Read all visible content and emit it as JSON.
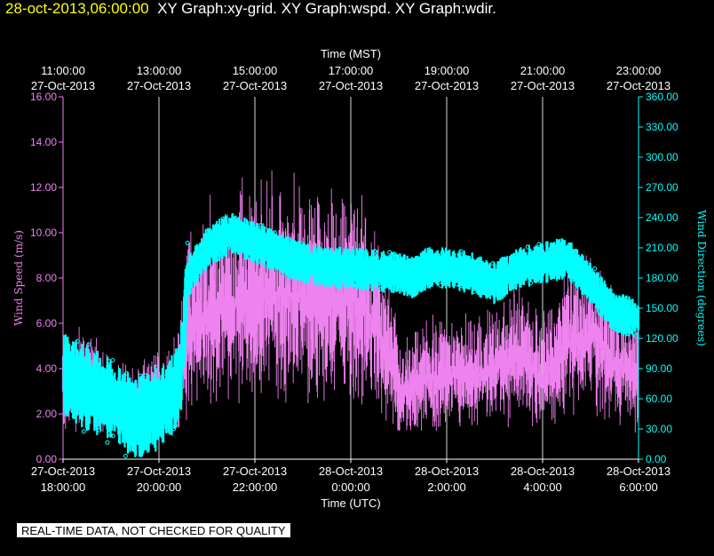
{
  "header": {
    "timestamp": "28-oct-2013,06:00:00",
    "graphs": "XY Graph:xy-grid.  XY Graph:wspd.  XY Graph:wdir."
  },
  "banner": "REAL-TIME DATA, NOT CHECKED FOR QUALITY",
  "colors": {
    "background": "#000000",
    "speed": "#ee82ee",
    "direction": "#00ffff",
    "text": "#ffffff",
    "grid": "#ffffff",
    "header_timestamp": "#ffff00"
  },
  "chart_data": {
    "type": "scatter",
    "top_axis": {
      "title": "Time (MST)",
      "ticks": [
        {
          "hours": 0,
          "time": "11:00:00",
          "date": "27-Oct-2013"
        },
        {
          "hours": 2,
          "time": "13:00:00",
          "date": "27-Oct-2013"
        },
        {
          "hours": 4,
          "time": "15:00:00",
          "date": "27-Oct-2013"
        },
        {
          "hours": 6,
          "time": "17:00:00",
          "date": "27-Oct-2013"
        },
        {
          "hours": 8,
          "time": "19:00:00",
          "date": "27-Oct-2013"
        },
        {
          "hours": 10,
          "time": "21:00:00",
          "date": "27-Oct-2013"
        },
        {
          "hours": 12,
          "time": "23:00:00",
          "date": "27-Oct-2013"
        }
      ]
    },
    "bottom_axis": {
      "title": "Time (UTC)",
      "ticks": [
        {
          "hours": 0,
          "date": "27-Oct-2013",
          "time": "18:00:00"
        },
        {
          "hours": 2,
          "date": "27-Oct-2013",
          "time": "20:00:00"
        },
        {
          "hours": 4,
          "date": "27-Oct-2013",
          "time": "22:00:00"
        },
        {
          "hours": 6,
          "date": "28-Oct-2013",
          "time": "0:00:00"
        },
        {
          "hours": 8,
          "date": "28-Oct-2013",
          "time": "2:00:00"
        },
        {
          "hours": 10,
          "date": "28-Oct-2013",
          "time": "4:00:00"
        },
        {
          "hours": 12,
          "date": "28-Oct-2013",
          "time": "6:00:00"
        }
      ]
    },
    "x_range_hours": [
      0,
      12
    ],
    "left_axis": {
      "label": "Wind Speed (m/s)",
      "ylim": [
        0,
        16
      ],
      "ticks": [
        "0.00",
        "2.00",
        "4.00",
        "6.00",
        "8.00",
        "10.00",
        "12.00",
        "14.00",
        "16.00"
      ]
    },
    "right_axis": {
      "label": "Wind Direction (degrees)",
      "ylim": [
        0,
        360
      ],
      "ticks": [
        "0.00",
        "30.00",
        "60.00",
        "90.00",
        "120.00",
        "150.00",
        "180.00",
        "210.00",
        "240.00",
        "270.00",
        "300.00",
        "330.00",
        "360.00"
      ]
    },
    "grid": "vertical lines at tick times",
    "series": [
      {
        "axis": "left",
        "values_hours": [
          0,
          0.5,
          1.0,
          1.5,
          2.0,
          2.4,
          2.6,
          3.0,
          3.5,
          4.0,
          4.5,
          5.0,
          5.5,
          6.0,
          6.3,
          6.6,
          6.8,
          7.0,
          7.5,
          8.0,
          8.5,
          9.0,
          9.5,
          10.0,
          10.5,
          11.0,
          11.5,
          12.0
        ],
        "values": [
          3.0,
          3.5,
          2.5,
          2.3,
          2.8,
          3.2,
          5.8,
          6.5,
          6.8,
          7.0,
          7.2,
          7.2,
          7.0,
          7.0,
          6.5,
          5.5,
          4.5,
          3.0,
          3.5,
          3.8,
          3.6,
          4.0,
          4.5,
          3.6,
          5.0,
          5.5,
          4.2,
          3.5
        ]
      },
      {
        "axis": "right",
        "values_hours": [
          0,
          0.5,
          1.0,
          1.5,
          2.0,
          2.3,
          2.45,
          2.6,
          3.0,
          3.5,
          4.0,
          4.5,
          5.0,
          5.5,
          6.0,
          6.5,
          7.0,
          7.3,
          7.6,
          8.0,
          8.5,
          9.0,
          9.5,
          10.0,
          10.5,
          11.0,
          11.5,
          12.0
        ],
        "values": [
          85,
          70,
          60,
          40,
          50,
          65,
          80,
          180,
          210,
          225,
          215,
          205,
          195,
          190,
          190,
          187,
          185,
          180,
          190,
          190,
          185,
          175,
          190,
          195,
          200,
          175,
          145,
          140
        ]
      }
    ]
  }
}
